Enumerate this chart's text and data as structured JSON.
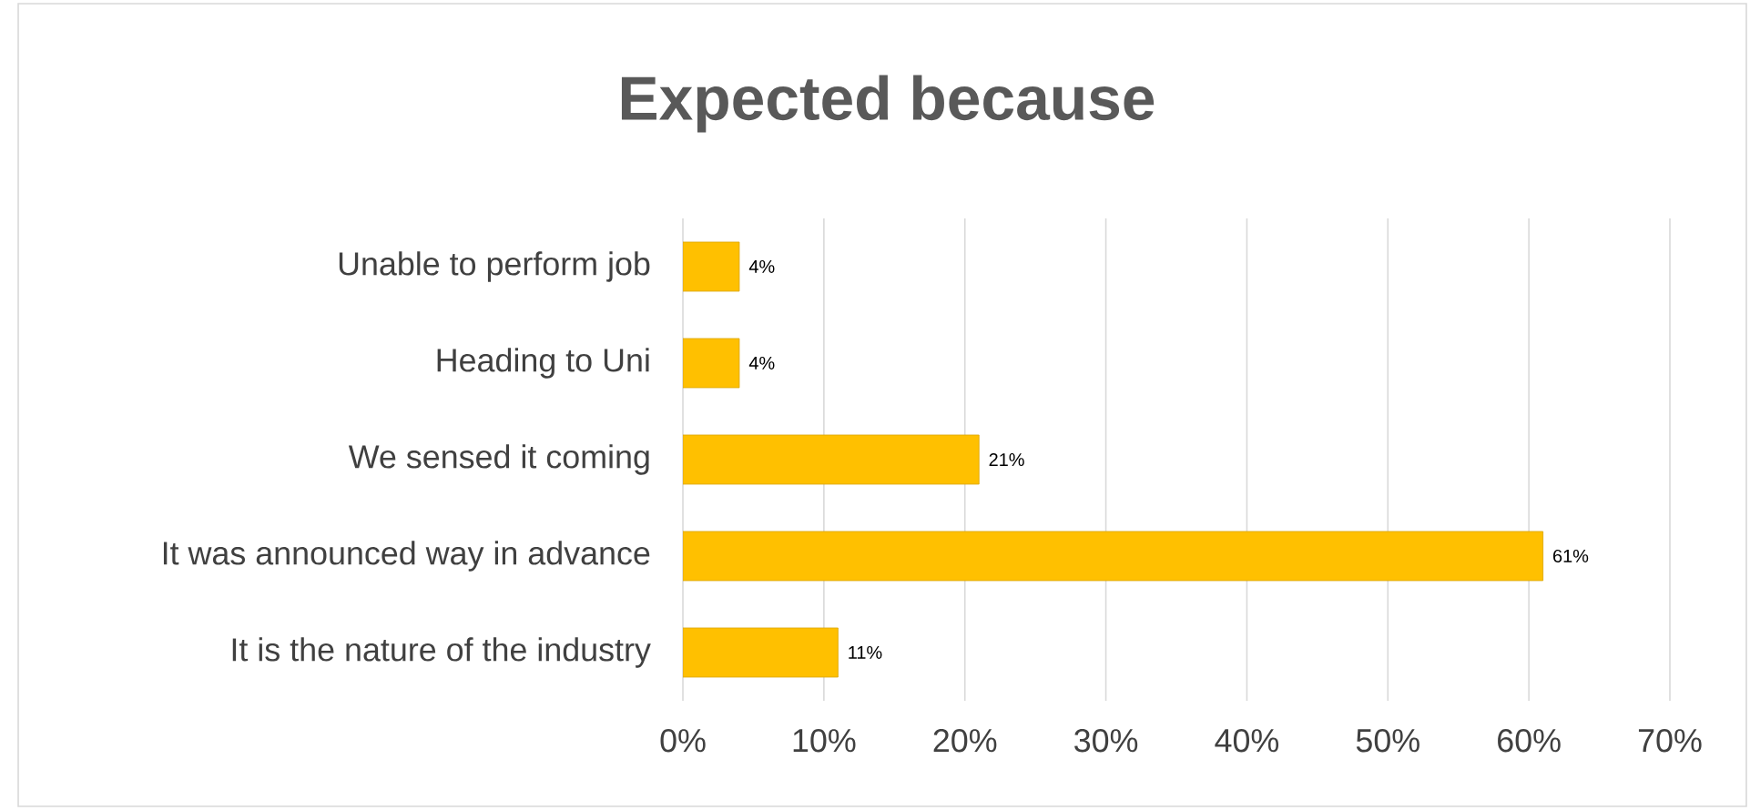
{
  "chart_data": {
    "type": "bar",
    "orientation": "horizontal",
    "title": "Expected because",
    "categories": [
      "Unable to perform job",
      "Heading to Uni",
      "We sensed it coming",
      "It was announced way in advance",
      "It is the nature of the industry"
    ],
    "values": [
      4,
      4,
      21,
      61,
      11
    ],
    "value_labels": [
      "4%",
      "4%",
      "21%",
      "61%",
      "11%"
    ],
    "color": "#ffc000",
    "xlim": [
      0,
      70
    ],
    "xticks": [
      {
        "value": 0,
        "label": "0%"
      },
      {
        "value": 10,
        "label": "10%"
      },
      {
        "value": 20,
        "label": "20%"
      },
      {
        "value": 30,
        "label": "30%"
      },
      {
        "value": 40,
        "label": "40%"
      },
      {
        "value": 50,
        "label": "50%"
      },
      {
        "value": 60,
        "label": "60%"
      },
      {
        "value": 70,
        "label": "70%"
      }
    ],
    "grid": "x"
  }
}
